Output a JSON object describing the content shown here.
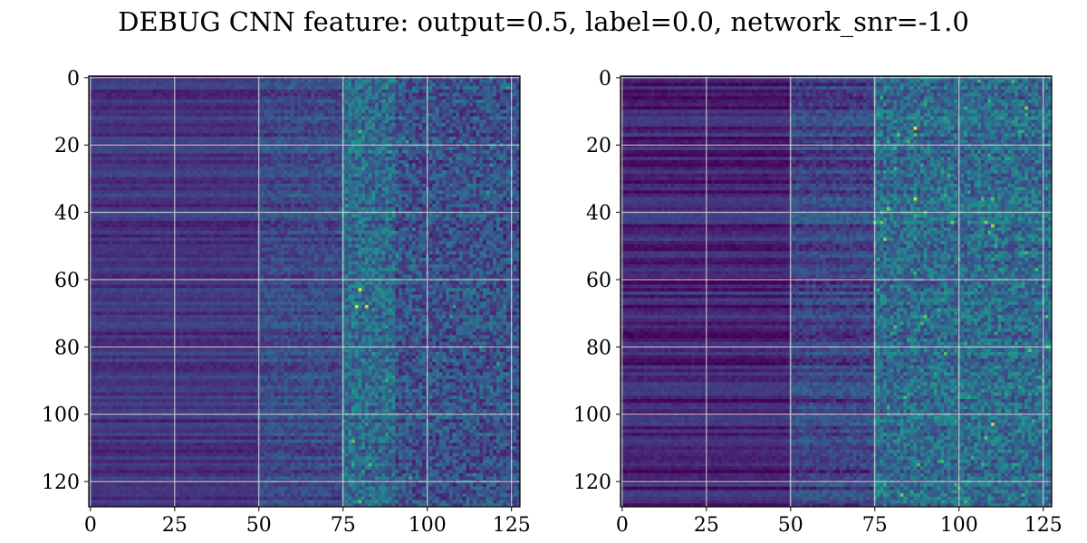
{
  "title": "DEBUG CNN feature: output=0.5, label=0.0, network_snr=-1.0",
  "chart_data": [
    {
      "type": "heatmap",
      "colormap": "viridis",
      "rows": 128,
      "cols": 128,
      "xlim": [
        -0.5,
        127.5
      ],
      "ylim": [
        127.5,
        -0.5
      ],
      "x_ticks": [
        0,
        25,
        50,
        75,
        100,
        125
      ],
      "y_ticks": [
        0,
        20,
        40,
        60,
        80,
        100,
        120
      ],
      "x_tick_labels": [
        "0",
        "25",
        "50",
        "75",
        "100",
        "125"
      ],
      "y_tick_labels": [
        "0",
        "20",
        "40",
        "60",
        "80",
        "100",
        "120"
      ],
      "grid": true,
      "xlabel": "",
      "ylabel": "",
      "regions": [
        {
          "x_range": [
            0,
            49
          ],
          "description": "low-magnitude, horizontally striped",
          "level": 0.15
        },
        {
          "x_range": [
            50,
            74
          ],
          "description": "rising noise",
          "level": 0.22
        },
        {
          "x_range": [
            75,
            90
          ],
          "description": "strongest speckle band",
          "level": 0.35
        },
        {
          "x_range": [
            91,
            127
          ],
          "description": "moderate noise",
          "level": 0.25
        }
      ],
      "hot_spots": [
        {
          "x": 80,
          "y": 63,
          "value": 0.95
        },
        {
          "x": 79,
          "y": 68,
          "value": 0.92
        },
        {
          "x": 82,
          "y": 68,
          "value": 0.9
        },
        {
          "x": 80,
          "y": 16,
          "value": 0.7
        },
        {
          "x": 81,
          "y": 27,
          "value": 0.6
        },
        {
          "x": 80,
          "y": 43,
          "value": 0.55
        },
        {
          "x": 83,
          "y": 86,
          "value": 0.5
        },
        {
          "x": 82,
          "y": 103,
          "value": 0.55
        }
      ]
    },
    {
      "type": "heatmap",
      "colormap": "viridis",
      "rows": 128,
      "cols": 128,
      "xlim": [
        -0.5,
        127.5
      ],
      "ylim": [
        127.5,
        -0.5
      ],
      "x_ticks": [
        0,
        25,
        50,
        75,
        100,
        125
      ],
      "y_ticks": [
        0,
        20,
        40,
        60,
        80,
        100,
        120
      ],
      "x_tick_labels": [
        "0",
        "25",
        "50",
        "75",
        "100",
        "125"
      ],
      "y_tick_labels": [
        "0",
        "20",
        "40",
        "60",
        "80",
        "100",
        "120"
      ],
      "grid": true,
      "xlabel": "",
      "ylabel": "",
      "regions": [
        {
          "x_range": [
            0,
            49
          ],
          "description": "dark, strongly striped rows",
          "level": 0.1
        },
        {
          "x_range": [
            50,
            74
          ],
          "description": "rising noise",
          "level": 0.2
        },
        {
          "x_range": [
            75,
            127
          ],
          "description": "bright speckled noise",
          "level": 0.35
        }
      ],
      "hot_spots": [
        {
          "x": 87,
          "y": 15,
          "value": 0.95
        },
        {
          "x": 120,
          "y": 9,
          "value": 0.8
        },
        {
          "x": 87,
          "y": 36,
          "value": 0.9
        },
        {
          "x": 79,
          "y": 39,
          "value": 0.8
        },
        {
          "x": 108,
          "y": 43,
          "value": 0.8
        },
        {
          "x": 110,
          "y": 44,
          "value": 0.85
        },
        {
          "x": 110,
          "y": 103,
          "value": 0.9
        },
        {
          "x": 88,
          "y": 115,
          "value": 0.7
        },
        {
          "x": 80,
          "y": 76,
          "value": 0.6
        }
      ]
    }
  ]
}
